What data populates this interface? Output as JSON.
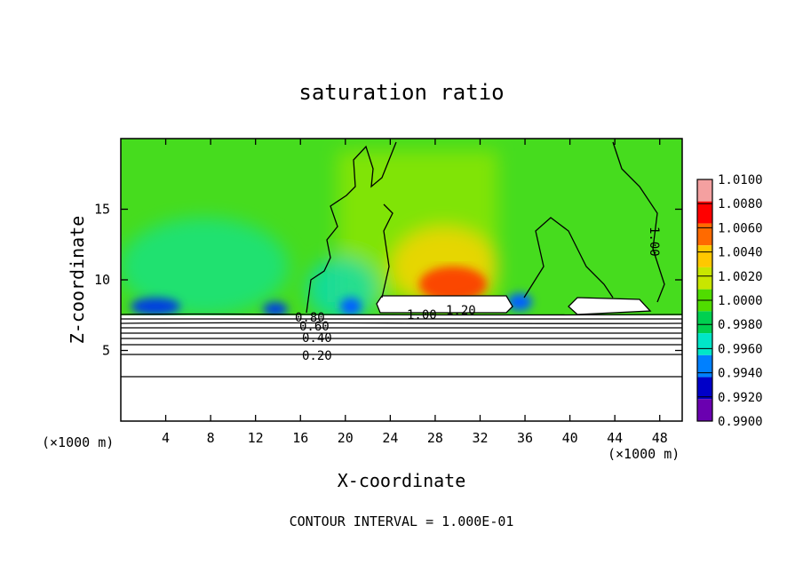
{
  "chart_data": {
    "type": "heatmap",
    "title": "saturation ratio",
    "xlabel": "X-coordinate",
    "ylabel": "Z-coordinate",
    "x_unit": "(×1000 m)",
    "footer": "CONTOUR INTERVAL = 1.000E-01",
    "xlim": [
      0,
      50
    ],
    "ylim": [
      0,
      20
    ],
    "x_ticks": [
      4,
      8,
      12,
      16,
      20,
      24,
      28,
      32,
      36,
      40,
      44,
      48
    ],
    "y_ticks": [
      5,
      10,
      15
    ],
    "colorbar": {
      "levels": [
        "1.0100",
        "1.0080",
        "1.0060",
        "1.0040",
        "1.0020",
        "1.0000",
        "0.9980",
        "0.9960",
        "0.9940",
        "0.9920",
        "0.9900"
      ],
      "colors": [
        "#f4a0a0",
        "#ff0000",
        "#ff6a00",
        "#ffc800",
        "#c8e600",
        "#50dc00",
        "#00d050",
        "#00e6c8",
        "#0080ff",
        "#0000c8",
        "#6a00b0"
      ]
    },
    "contour_labels": [
      "0.20",
      "0.40",
      "0.60",
      "0.80",
      "1.00",
      "1.20",
      "1.00"
    ],
    "field_regions": [
      {
        "name": "background",
        "value": 1.0
      },
      {
        "name": "upper-mid-column",
        "value": 1.0015
      },
      {
        "name": "core",
        "value": 1.006
      },
      {
        "name": "low-left-blue",
        "value": 0.994
      },
      {
        "name": "low-left-cyan",
        "value": 0.996
      },
      {
        "name": "lower-unsaturated",
        "value": 0.5
      }
    ]
  }
}
